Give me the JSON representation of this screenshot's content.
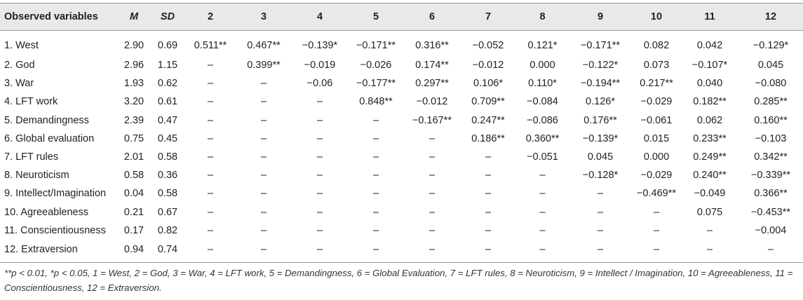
{
  "table": {
    "headers": [
      "Observed variables",
      "M",
      "SD",
      "2",
      "3",
      "4",
      "5",
      "6",
      "7",
      "8",
      "9",
      "10",
      "11",
      "12"
    ],
    "rows": [
      [
        "1. West",
        "2.90",
        "0.69",
        "0.511**",
        "0.467**",
        "−0.139*",
        "−0.171**",
        "0.316**",
        "−0.052",
        "0.121*",
        "−0.171**",
        "0.082",
        "0.042",
        "−0.129*"
      ],
      [
        "2. God",
        "2.96",
        "1.15",
        "–",
        "0.399**",
        "−0.019",
        "−0.026",
        "0.174**",
        "−0.012",
        "0.000",
        "−0.122*",
        "0.073",
        "−0.107*",
        "0.045"
      ],
      [
        "3. War",
        "1.93",
        "0.62",
        "–",
        "–",
        "−0.06",
        "−0.177**",
        "0.297**",
        "0.106*",
        "0.110*",
        "−0.194**",
        "0.217**",
        "0.040",
        "−0.080"
      ],
      [
        "4. LFT work",
        "3.20",
        "0.61",
        "–",
        "–",
        "–",
        "0.848**",
        "−0.012",
        "0.709**",
        "−0.084",
        "0.126*",
        "−0.029",
        "0.182**",
        "0.285**"
      ],
      [
        "5. Demandingness",
        "2.39",
        "0.47",
        "–",
        "–",
        "–",
        "–",
        "−0.167**",
        "0.247**",
        "−0.086",
        "0.176**",
        "−0.061",
        "0.062",
        "0.160**"
      ],
      [
        "6. Global evaluation",
        "0.75",
        "0.45",
        "–",
        "–",
        "–",
        "–",
        "–",
        "0.186**",
        "0.360**",
        "−0.139*",
        "0.015",
        "0.233**",
        "−0.103"
      ],
      [
        "7. LFT rules",
        "2.01",
        "0.58",
        "–",
        "–",
        "–",
        "–",
        "–",
        "–",
        "−0.051",
        "0.045",
        "0.000",
        "0.249**",
        "0.342**"
      ],
      [
        "8. Neuroticism",
        "0.58",
        "0.36",
        "–",
        "–",
        "–",
        "–",
        "–",
        "–",
        "–",
        "−0.128*",
        "−0.029",
        "0.240**",
        "−0.339**"
      ],
      [
        "9. Intellect/Imagination",
        "0.04",
        "0.58",
        "–",
        "–",
        "–",
        "–",
        "–",
        "–",
        "–",
        "–",
        "−0.469**",
        "−0.049",
        "0.366**"
      ],
      [
        "10. Agreeableness",
        "0.21",
        "0.67",
        "–",
        "–",
        "–",
        "–",
        "–",
        "–",
        "–",
        "–",
        "–",
        "0.075",
        "−0.453**"
      ],
      [
        "11. Conscientiousness",
        "0.17",
        "0.82",
        "–",
        "–",
        "–",
        "–",
        "–",
        "–",
        "–",
        "–",
        "–",
        "–",
        "−0.004"
      ],
      [
        "12. Extraversion",
        "0.94",
        "0.74",
        "–",
        "–",
        "–",
        "–",
        "–",
        "–",
        "–",
        "–",
        "–",
        "–",
        "–"
      ]
    ]
  },
  "note": "**p < 0.01, *p < 0.05, 1 = West, 2 = God, 3 = War, 4 = LFT work, 5 = Demandingness, 6 = Global Evaluation, 7 = LFT rules, 8 = Neuroticism, 9 = Intellect / Imagination, 10 = Agreeableness, 11 = Conscientiousness, 12 = Extraversion."
}
